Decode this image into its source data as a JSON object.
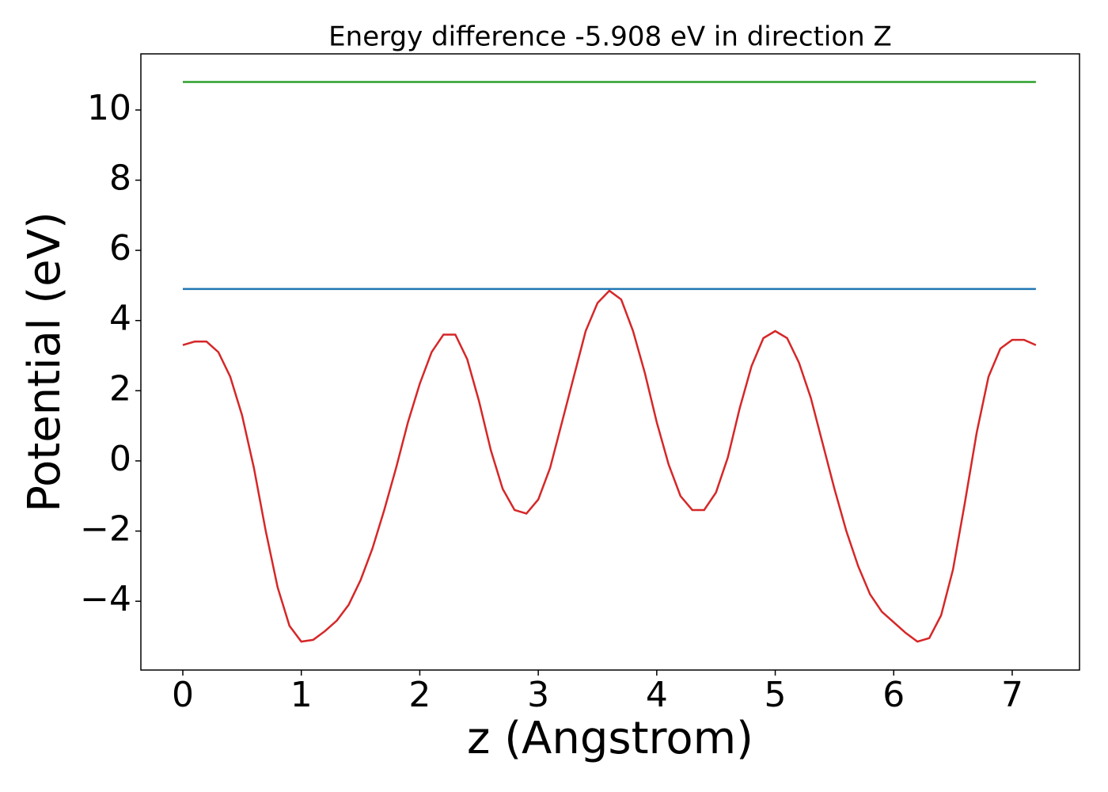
{
  "chart_data": {
    "type": "line",
    "title": "Energy difference -5.908 eV in direction Z",
    "xlabel": "z (Angstrom)",
    "ylabel": "Potential (eV)",
    "xlim": [
      -0.354,
      7.568
    ],
    "ylim": [
      -5.96,
      11.6
    ],
    "xticks": [
      0,
      1,
      2,
      3,
      4,
      5,
      6,
      7
    ],
    "yticks": [
      {
        "value": -4,
        "label": "−4"
      },
      {
        "value": -2,
        "label": "−2"
      },
      0,
      2,
      4,
      6,
      8,
      10
    ],
    "grid": false,
    "series": [
      {
        "color": "#d62728",
        "x": [
          0,
          0.1,
          0.2,
          0.3,
          0.4,
          0.5,
          0.6,
          0.7,
          0.8,
          0.9,
          1.0,
          1.1,
          1.2,
          1.3,
          1.4,
          1.5,
          1.6,
          1.7,
          1.8,
          1.9,
          2.0,
          2.1,
          2.2,
          2.3,
          2.4,
          2.5,
          2.6,
          2.7,
          2.8,
          2.9,
          3.0,
          3.1,
          3.2,
          3.3,
          3.4,
          3.5,
          3.6,
          3.7,
          3.8,
          3.9,
          4.0,
          4.1,
          4.2,
          4.3,
          4.4,
          4.5,
          4.6,
          4.7,
          4.8,
          4.9,
          5.0,
          5.1,
          5.2,
          5.3,
          5.4,
          5.5,
          5.6,
          5.7,
          5.8,
          5.9,
          6.0,
          6.1,
          6.2,
          6.3,
          6.4,
          6.5,
          6.6,
          6.7,
          6.8,
          6.9,
          7.0,
          7.1,
          7.2
        ],
        "values": [
          3.3,
          3.4,
          3.4,
          3.1,
          2.4,
          1.3,
          -0.2,
          -2.0,
          -3.6,
          -4.7,
          -5.15,
          -5.1,
          -4.85,
          -4.55,
          -4.1,
          -3.4,
          -2.5,
          -1.4,
          -0.2,
          1.1,
          2.2,
          3.1,
          3.6,
          3.6,
          2.9,
          1.7,
          0.3,
          -0.8,
          -1.4,
          -1.5,
          -1.1,
          -0.2,
          1.1,
          2.4,
          3.7,
          4.5,
          4.85,
          4.6,
          3.7,
          2.5,
          1.1,
          -0.1,
          -1.0,
          -1.4,
          -1.4,
          -0.9,
          0.1,
          1.5,
          2.7,
          3.5,
          3.7,
          3.5,
          2.8,
          1.8,
          0.5,
          -0.8,
          -2.0,
          -3.0,
          -3.8,
          -4.3,
          -4.6,
          -4.9,
          -5.15,
          -5.05,
          -4.4,
          -3.1,
          -1.2,
          0.8,
          2.4,
          3.2,
          3.45,
          3.45,
          3.3
        ]
      },
      {
        "color": "#2ca02c",
        "x": [
          0,
          7.2
        ],
        "values": [
          10.8,
          10.8
        ]
      },
      {
        "color": "#1f77b4",
        "x": [
          0,
          7.2
        ],
        "values": [
          4.9,
          4.9
        ]
      }
    ]
  }
}
